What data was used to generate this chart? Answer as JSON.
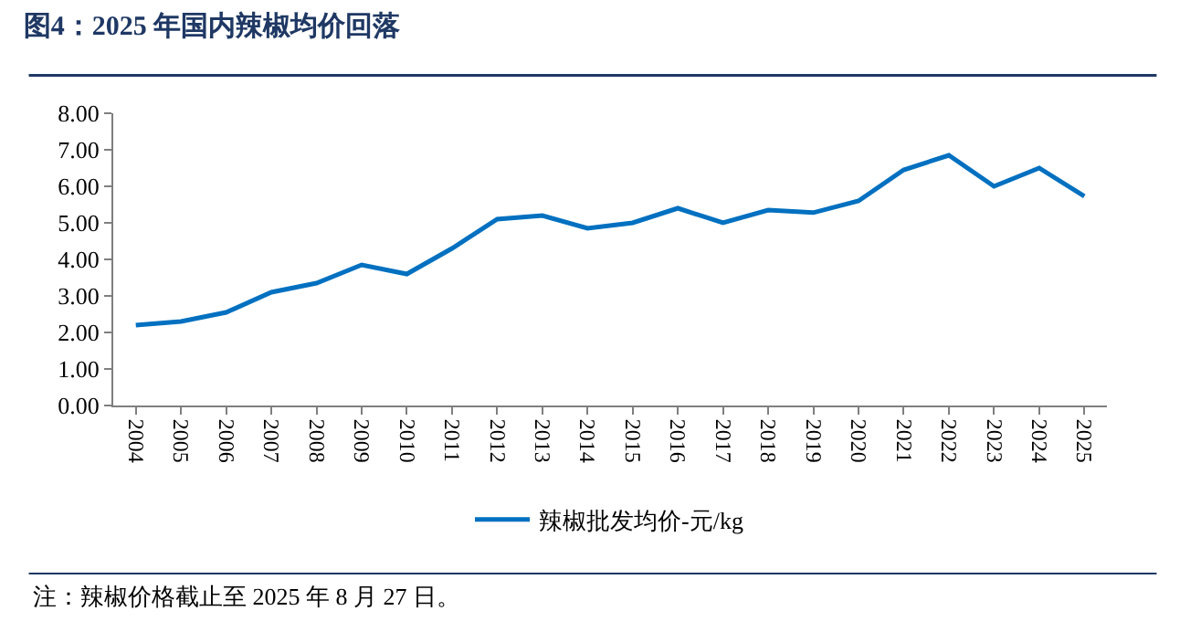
{
  "chart_data": {
    "type": "line",
    "title": "图4：2025 年国内辣椒均价回落",
    "categories": [
      "2004",
      "2005",
      "2006",
      "2007",
      "2008",
      "2009",
      "2010",
      "2011",
      "2012",
      "2013",
      "2014",
      "2015",
      "2016",
      "2017",
      "2018",
      "2019",
      "2020",
      "2021",
      "2022",
      "2023",
      "2024",
      "2025"
    ],
    "series": [
      {
        "name": "辣椒批发均价-元/kg",
        "color": "#0070c0",
        "values": [
          2.2,
          2.3,
          2.55,
          3.1,
          3.35,
          3.85,
          3.6,
          4.3,
          5.1,
          5.2,
          4.85,
          5.0,
          5.4,
          5.0,
          5.35,
          5.28,
          5.6,
          6.45,
          6.85,
          6.0,
          6.5,
          5.73
        ]
      }
    ],
    "ylim": [
      0,
      8
    ],
    "yticks": [
      {
        "value": 0,
        "label": "0.00"
      },
      {
        "value": 1,
        "label": "1.00"
      },
      {
        "value": 2,
        "label": "2.00"
      },
      {
        "value": 3,
        "label": "3.00"
      },
      {
        "value": 4,
        "label": "4.00"
      },
      {
        "value": 5,
        "label": "5.00"
      },
      {
        "value": 6,
        "label": "6.00"
      },
      {
        "value": 7,
        "label": "7.00"
      },
      {
        "value": 8,
        "label": "8.00"
      }
    ],
    "legend": "bottom",
    "marker": "none",
    "line_style": "solid",
    "annotations": [
      "注：辣椒价格截止至 2025 年 8 月 27 日。"
    ]
  }
}
